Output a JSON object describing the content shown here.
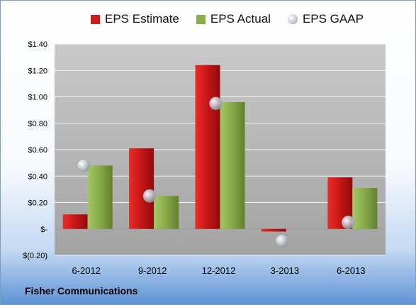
{
  "chart_data": {
    "type": "bar",
    "title": "",
    "xlabel": "",
    "ylabel": "",
    "categories": [
      "6-2012",
      "9-2012",
      "12-2012",
      "3-2013",
      "6-2013"
    ],
    "series": [
      {
        "name": "EPS Estimate",
        "type": "bar",
        "color": "#cc1c1c",
        "values": [
          0.11,
          0.61,
          1.24,
          -0.02,
          0.39
        ]
      },
      {
        "name": "EPS Actual",
        "type": "bar",
        "color": "#8aae4a",
        "values": [
          0.48,
          0.25,
          0.96,
          null,
          0.31
        ]
      },
      {
        "name": "EPS GAAP",
        "type": "marker",
        "color": "#b9c0c8",
        "values": [
          0.48,
          0.25,
          0.95,
          -0.09,
          0.05
        ]
      }
    ],
    "y_ticks": [
      {
        "value": 1.4,
        "label": "$1.40"
      },
      {
        "value": 1.2,
        "label": "$1.20"
      },
      {
        "value": 1.0,
        "label": "$1.00"
      },
      {
        "value": 0.8,
        "label": "$0.80"
      },
      {
        "value": 0.6,
        "label": "$0.60"
      },
      {
        "value": 0.4,
        "label": "$0.40"
      },
      {
        "value": 0.2,
        "label": "$0.20"
      },
      {
        "value": 0.0,
        "label": "$-"
      },
      {
        "value": -0.2,
        "label": "$(0.20)"
      }
    ],
    "ylim": [
      -0.2,
      1.4
    ],
    "grid": true,
    "legend_position": "top"
  },
  "legend": {
    "estimate_label": "EPS Estimate",
    "actual_label": "EPS Actual",
    "gaap_label": "EPS GAAP"
  },
  "company": "Fisher Communications"
}
